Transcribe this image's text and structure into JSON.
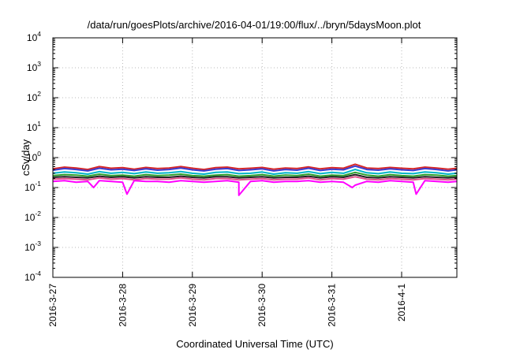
{
  "chart_data": {
    "type": "line",
    "title": "/data/run/goesPlots/archive/2016-04-01/19:00/flux/../bryn/5daysMoon.plot",
    "xlabel": "Coordinated Universal Time (UTC)",
    "ylabel": "cSv/day",
    "yscale": "log",
    "ylim": [
      0.0001,
      10000
    ],
    "xlim": [
      "2016-03-27T00:00",
      "2016-04-01T19:00"
    ],
    "grid": true,
    "legend": "none",
    "y_ticks": [
      {
        "base": "10",
        "exp": "-4"
      },
      {
        "base": "10",
        "exp": "-3"
      },
      {
        "base": "10",
        "exp": "-2"
      },
      {
        "base": "10",
        "exp": "-1"
      },
      {
        "base": "10",
        "exp": "0"
      },
      {
        "base": "10",
        "exp": "1"
      },
      {
        "base": "10",
        "exp": "2"
      },
      {
        "base": "10",
        "exp": "3"
      },
      {
        "base": "10",
        "exp": "4"
      }
    ],
    "x_ticks": [
      "2016-3-27",
      "2016-3-28",
      "2016-3-29",
      "2016-3-30",
      "2016-3-31",
      "2016-4-1"
    ],
    "x": [
      "2016-03-27T00:00",
      "2016-03-27T04:00",
      "2016-03-27T08:00",
      "2016-03-27T12:00",
      "2016-03-27T16:00",
      "2016-03-27T20:00",
      "2016-03-28T00:00",
      "2016-03-28T04:00",
      "2016-03-28T08:00",
      "2016-03-28T12:00",
      "2016-03-28T16:00",
      "2016-03-28T20:00",
      "2016-03-29T00:00",
      "2016-03-29T04:00",
      "2016-03-29T08:00",
      "2016-03-29T12:00",
      "2016-03-29T16:00",
      "2016-03-29T20:00",
      "2016-03-30T00:00",
      "2016-03-30T04:00",
      "2016-03-30T08:00",
      "2016-03-30T12:00",
      "2016-03-30T16:00",
      "2016-03-30T20:00",
      "2016-03-31T00:00",
      "2016-03-31T04:00",
      "2016-03-31T08:00",
      "2016-03-31T12:00",
      "2016-03-31T16:00",
      "2016-03-31T20:00",
      "2016-04-01T00:00",
      "2016-04-01T04:00",
      "2016-04-01T08:00",
      "2016-04-01T12:00",
      "2016-04-01T16:00",
      "2016-04-01T19:00"
    ],
    "series": [
      {
        "color": "#d62728",
        "values": [
          0.42,
          0.48,
          0.45,
          0.4,
          0.5,
          0.44,
          0.46,
          0.41,
          0.47,
          0.43,
          0.45,
          0.5,
          0.44,
          0.4,
          0.46,
          0.48,
          0.42,
          0.44,
          0.47,
          0.41,
          0.45,
          0.43,
          0.49,
          0.42,
          0.46,
          0.44,
          0.6,
          0.45,
          0.43,
          0.47,
          0.44,
          0.42,
          0.48,
          0.45,
          0.41,
          0.44
        ]
      },
      {
        "color": "#3b3bd1",
        "values": [
          0.38,
          0.43,
          0.4,
          0.36,
          0.44,
          0.39,
          0.41,
          0.37,
          0.42,
          0.38,
          0.4,
          0.45,
          0.39,
          0.36,
          0.41,
          0.43,
          0.37,
          0.39,
          0.42,
          0.36,
          0.4,
          0.38,
          0.44,
          0.37,
          0.41,
          0.39,
          0.52,
          0.4,
          0.38,
          0.42,
          0.39,
          0.37,
          0.43,
          0.4,
          0.36,
          0.39
        ]
      },
      {
        "color": "#00b4c8",
        "values": [
          0.3,
          0.33,
          0.31,
          0.28,
          0.34,
          0.3,
          0.32,
          0.29,
          0.33,
          0.3,
          0.31,
          0.34,
          0.3,
          0.28,
          0.32,
          0.33,
          0.29,
          0.3,
          0.33,
          0.28,
          0.31,
          0.3,
          0.34,
          0.29,
          0.32,
          0.3,
          0.4,
          0.31,
          0.29,
          0.33,
          0.3,
          0.29,
          0.33,
          0.31,
          0.28,
          0.3
        ]
      },
      {
        "color": "#2ca02c",
        "values": [
          0.25,
          0.27,
          0.26,
          0.24,
          0.28,
          0.25,
          0.26,
          0.24,
          0.27,
          0.25,
          0.26,
          0.28,
          0.25,
          0.24,
          0.26,
          0.27,
          0.24,
          0.25,
          0.27,
          0.24,
          0.26,
          0.25,
          0.28,
          0.24,
          0.26,
          0.25,
          0.32,
          0.26,
          0.24,
          0.27,
          0.25,
          0.24,
          0.27,
          0.26,
          0.24,
          0.25
        ]
      },
      {
        "color": "#222222",
        "values": [
          0.22,
          0.23,
          0.22,
          0.21,
          0.24,
          0.22,
          0.23,
          0.21,
          0.23,
          0.22,
          0.22,
          0.24,
          0.22,
          0.21,
          0.23,
          0.23,
          0.21,
          0.22,
          0.23,
          0.21,
          0.22,
          0.22,
          0.24,
          0.21,
          0.23,
          0.22,
          0.27,
          0.22,
          0.21,
          0.23,
          0.22,
          0.21,
          0.23,
          0.22,
          0.21,
          0.22
        ]
      },
      {
        "color": "#e0508a",
        "values": [
          0.19,
          0.2,
          0.19,
          0.18,
          0.21,
          0.19,
          0.2,
          0.18,
          0.2,
          0.19,
          0.19,
          0.21,
          0.19,
          0.18,
          0.2,
          0.2,
          0.18,
          0.19,
          0.2,
          0.18,
          0.19,
          0.19,
          0.21,
          0.18,
          0.2,
          0.19,
          0.23,
          0.19,
          0.18,
          0.2,
          0.19,
          0.18,
          0.2,
          0.19,
          0.18,
          0.19
        ]
      },
      {
        "color": "#ff00ff",
        "values": [
          0.16,
          0.17,
          0.15,
          0.16,
          0.17,
          0.16,
          0.15,
          0.17,
          0.16,
          0.16,
          0.15,
          0.17,
          0.16,
          0.15,
          0.16,
          0.17,
          0.15,
          0.16,
          0.17,
          0.15,
          0.16,
          0.16,
          0.17,
          0.15,
          0.16,
          0.15,
          0.12,
          0.16,
          0.15,
          0.17,
          0.16,
          0.15,
          0.17,
          0.16,
          0.15,
          0.16
        ],
        "dips": [
          {
            "x": "2016-03-27T14:00",
            "y": 0.1
          },
          {
            "x": "2016-03-28T01:30",
            "y": 0.06
          },
          {
            "x": "2016-03-29T16:00",
            "y": 0.055
          },
          {
            "x": "2016-03-31T07:00",
            "y": 0.1
          },
          {
            "x": "2016-04-01T05:00",
            "y": 0.06
          }
        ]
      }
    ]
  }
}
